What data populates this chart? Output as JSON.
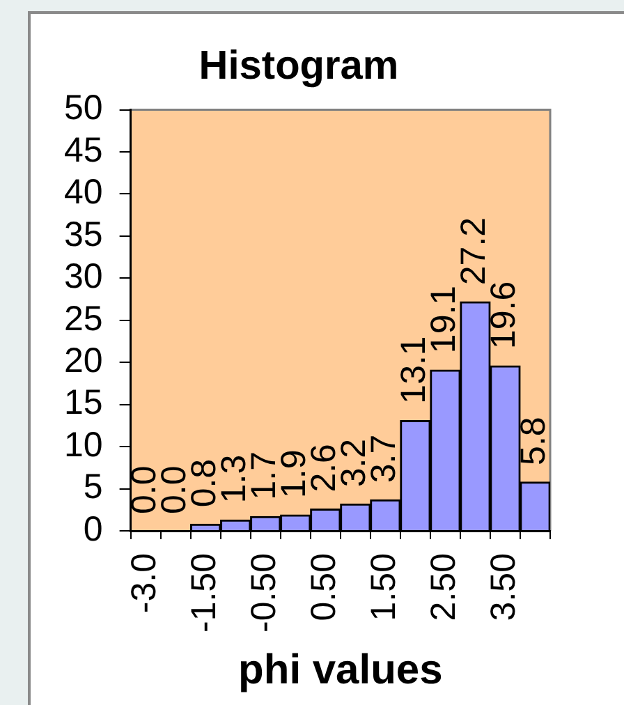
{
  "chart_data": {
    "type": "bar",
    "title": "Histogram",
    "xlabel": "phi values",
    "categories": [
      "-3.0",
      null,
      "-1.50",
      null,
      "-0.50",
      null,
      "0.50",
      null,
      "1.50",
      null,
      "2.50",
      null,
      "3.50",
      null
    ],
    "values": [
      0.0,
      0.0,
      0.8,
      1.3,
      1.7,
      1.9,
      2.6,
      3.2,
      3.7,
      13.1,
      19.1,
      27.2,
      19.6,
      5.8
    ],
    "value_labels": [
      "0.0",
      "0.0",
      "0.8",
      "1.3",
      "1.7",
      "1.9",
      "2.6",
      "3.2",
      "3.7",
      "13.1",
      "19.1",
      "27.2",
      "19.6",
      "5.8"
    ],
    "color": "#9999ff",
    "ylim": [
      0,
      50
    ],
    "yticks": [
      0,
      5,
      10,
      15,
      20,
      25,
      30,
      35,
      40,
      45,
      50
    ],
    "grid": false,
    "legend": false
  }
}
